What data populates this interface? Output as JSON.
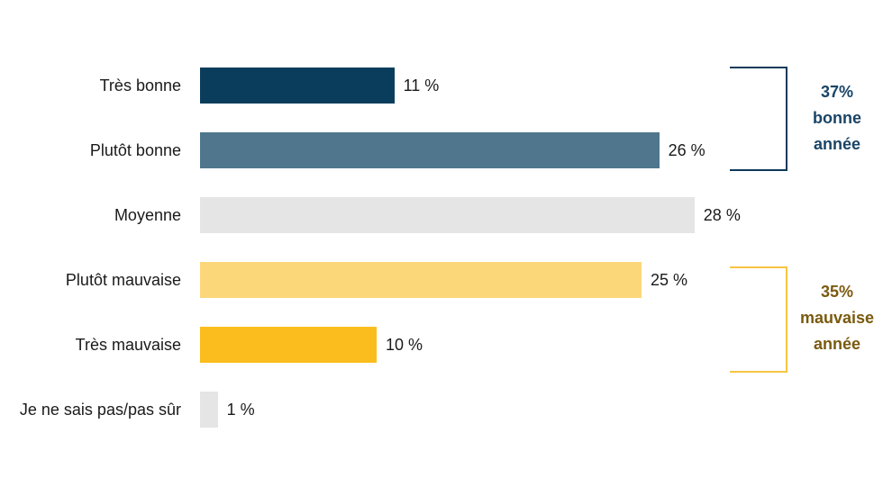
{
  "chart_data": {
    "type": "bar",
    "orientation": "horizontal",
    "title": "",
    "xlabel": "",
    "ylabel": "",
    "categories": [
      "Très bonne",
      "Plutôt bonne",
      "Moyenne",
      "Plutôt mauvaise",
      "Très mauvaise",
      "Je ne sais pas/pas sûr"
    ],
    "values": [
      11,
      26,
      28,
      25,
      10,
      1
    ],
    "value_labels": [
      "11 %",
      "26 %",
      "28 %",
      "25 %",
      "10 %",
      "1 %"
    ],
    "colors": [
      "#0a3d5c",
      "#4f768c",
      "#e5e5e5",
      "#fcd77a",
      "#fbbd1d",
      "#e5e5e5"
    ],
    "grid": false,
    "legend": null,
    "annotations": [
      {
        "label_lines": [
          "37%",
          "bonne",
          "année"
        ],
        "spans": [
          "Très bonne",
          "Plutôt bonne"
        ],
        "color": "#0e3a5a",
        "text_color": "#1a4466"
      },
      {
        "label_lines": [
          "35%",
          "mauvaise",
          "année"
        ],
        "spans": [
          "Plutôt mauvaise",
          "Très mauvaise"
        ],
        "color": "#f7c544",
        "text_color": "#7a5a10"
      }
    ]
  }
}
